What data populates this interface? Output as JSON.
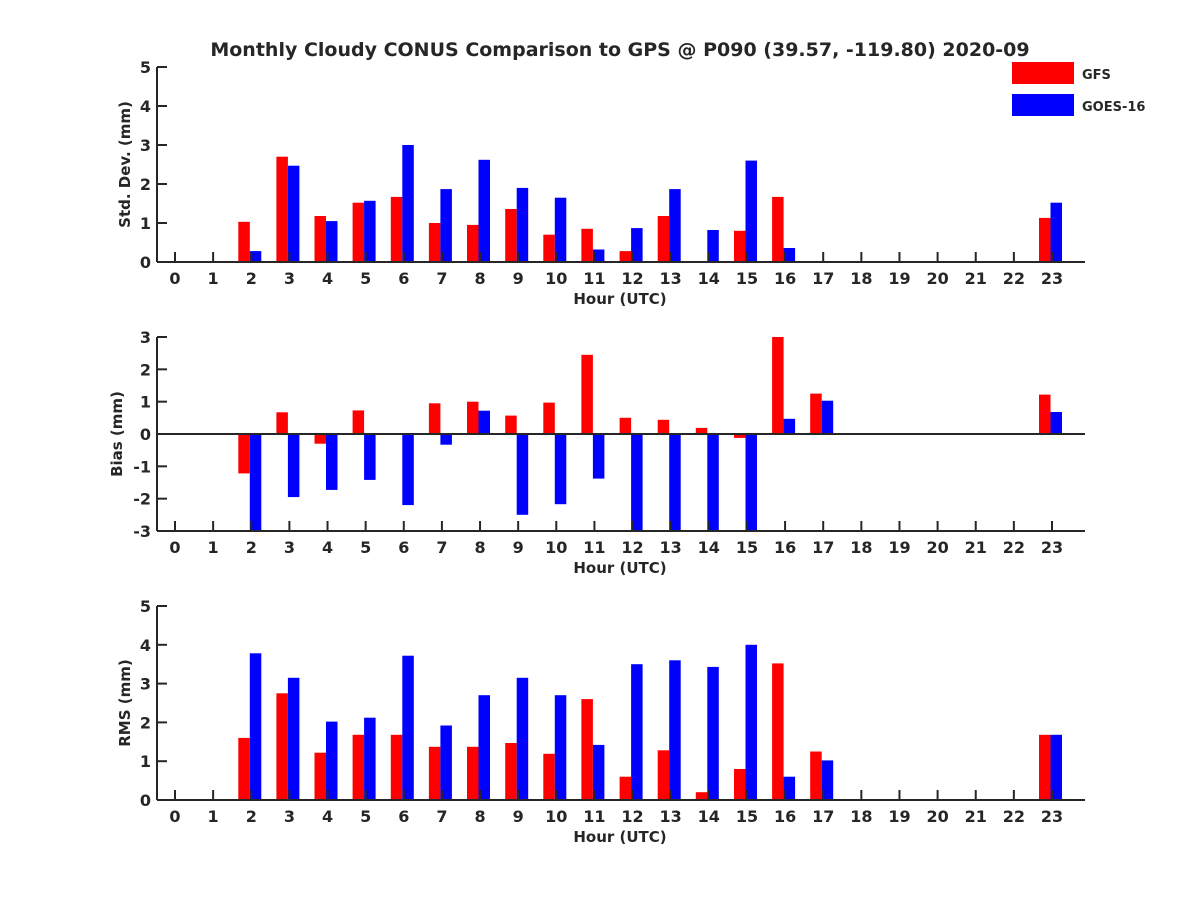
{
  "title": "Monthly Cloudy CONUS Comparison to GPS @ P090 (39.57, -119.80) 2020-09",
  "legend": [
    {
      "label": "GFS",
      "color": "#ff0000"
    },
    {
      "label": "GOES-16",
      "color": "#0000ff"
    }
  ],
  "chart_data": [
    {
      "type": "bar",
      "title": "Monthly Cloudy CONUS Comparison to GPS @ P090 (39.57, -119.80) 2020-09",
      "xlabel": "Hour (UTC)",
      "ylabel": "Std. Dev. (mm)",
      "ylim": [
        0,
        5
      ],
      "yticks": [
        0,
        1,
        2,
        3,
        4,
        5
      ],
      "categories": [
        "0",
        "1",
        "2",
        "3",
        "4",
        "5",
        "6",
        "7",
        "8",
        "9",
        "10",
        "11",
        "12",
        "13",
        "14",
        "15",
        "16",
        "17",
        "18",
        "19",
        "20",
        "21",
        "22",
        "23"
      ],
      "legend_position": "top-right",
      "grid": false,
      "series": [
        {
          "name": "GFS",
          "color": "#ff0000",
          "values": [
            0,
            0,
            1.03,
            2.7,
            1.18,
            1.52,
            1.67,
            1.0,
            0.95,
            1.36,
            0.7,
            0.85,
            0.28,
            1.18,
            0,
            0.8,
            1.67,
            0,
            0,
            0,
            0,
            0,
            0,
            1.13
          ]
        },
        {
          "name": "GOES-16",
          "color": "#0000ff",
          "values": [
            0,
            0,
            0.28,
            2.47,
            1.05,
            1.57,
            3.0,
            1.87,
            2.62,
            1.9,
            1.65,
            0.32,
            0.87,
            1.87,
            0.82,
            2.6,
            0.36,
            0,
            0,
            0,
            0,
            0,
            0,
            1.52
          ]
        }
      ]
    },
    {
      "type": "bar",
      "xlabel": "Hour (UTC)",
      "ylabel": "Bias (mm)",
      "ylim": [
        -3,
        3
      ],
      "yticks": [
        -3,
        -2,
        -1,
        0,
        1,
        2,
        3
      ],
      "categories": [
        "0",
        "1",
        "2",
        "3",
        "4",
        "5",
        "6",
        "7",
        "8",
        "9",
        "10",
        "11",
        "12",
        "13",
        "14",
        "15",
        "16",
        "17",
        "18",
        "19",
        "20",
        "21",
        "22",
        "23"
      ],
      "grid": false,
      "series": [
        {
          "name": "GFS",
          "color": "#ff0000",
          "values": [
            0,
            0,
            -1.22,
            0.67,
            -0.3,
            0.73,
            0.03,
            0.95,
            1.0,
            0.57,
            0.97,
            2.45,
            0.5,
            0.44,
            0.19,
            -0.12,
            3.0,
            1.25,
            0,
            0,
            0,
            0,
            0,
            1.22
          ]
        },
        {
          "name": "GOES-16",
          "color": "#0000ff",
          "values": [
            0,
            0,
            -3.0,
            -1.95,
            -1.73,
            -1.42,
            -2.2,
            -0.33,
            0.72,
            -2.5,
            -2.17,
            -1.38,
            -3.0,
            -3.0,
            -3.0,
            -3.0,
            0.47,
            1.03,
            0,
            0,
            0,
            0,
            0,
            0.68
          ]
        }
      ]
    },
    {
      "type": "bar",
      "xlabel": "Hour (UTC)",
      "ylabel": "RMS (mm)",
      "ylim": [
        0,
        5
      ],
      "yticks": [
        0,
        1,
        2,
        3,
        4,
        5
      ],
      "categories": [
        "0",
        "1",
        "2",
        "3",
        "4",
        "5",
        "6",
        "7",
        "8",
        "9",
        "10",
        "11",
        "12",
        "13",
        "14",
        "15",
        "16",
        "17",
        "18",
        "19",
        "20",
        "21",
        "22",
        "23"
      ],
      "grid": false,
      "series": [
        {
          "name": "GFS",
          "color": "#ff0000",
          "values": [
            0,
            0,
            1.6,
            2.75,
            1.22,
            1.68,
            1.68,
            1.37,
            1.37,
            1.47,
            1.19,
            2.6,
            0.6,
            1.28,
            0.2,
            0.8,
            3.52,
            1.25,
            0,
            0,
            0,
            0,
            0,
            1.68
          ]
        },
        {
          "name": "GOES-16",
          "color": "#0000ff",
          "values": [
            0,
            0,
            3.78,
            3.15,
            2.02,
            2.12,
            3.72,
            1.92,
            2.7,
            3.15,
            2.7,
            1.42,
            3.5,
            3.6,
            3.43,
            4.0,
            0.6,
            1.02,
            0,
            0,
            0,
            0,
            0,
            1.68
          ]
        }
      ]
    }
  ]
}
